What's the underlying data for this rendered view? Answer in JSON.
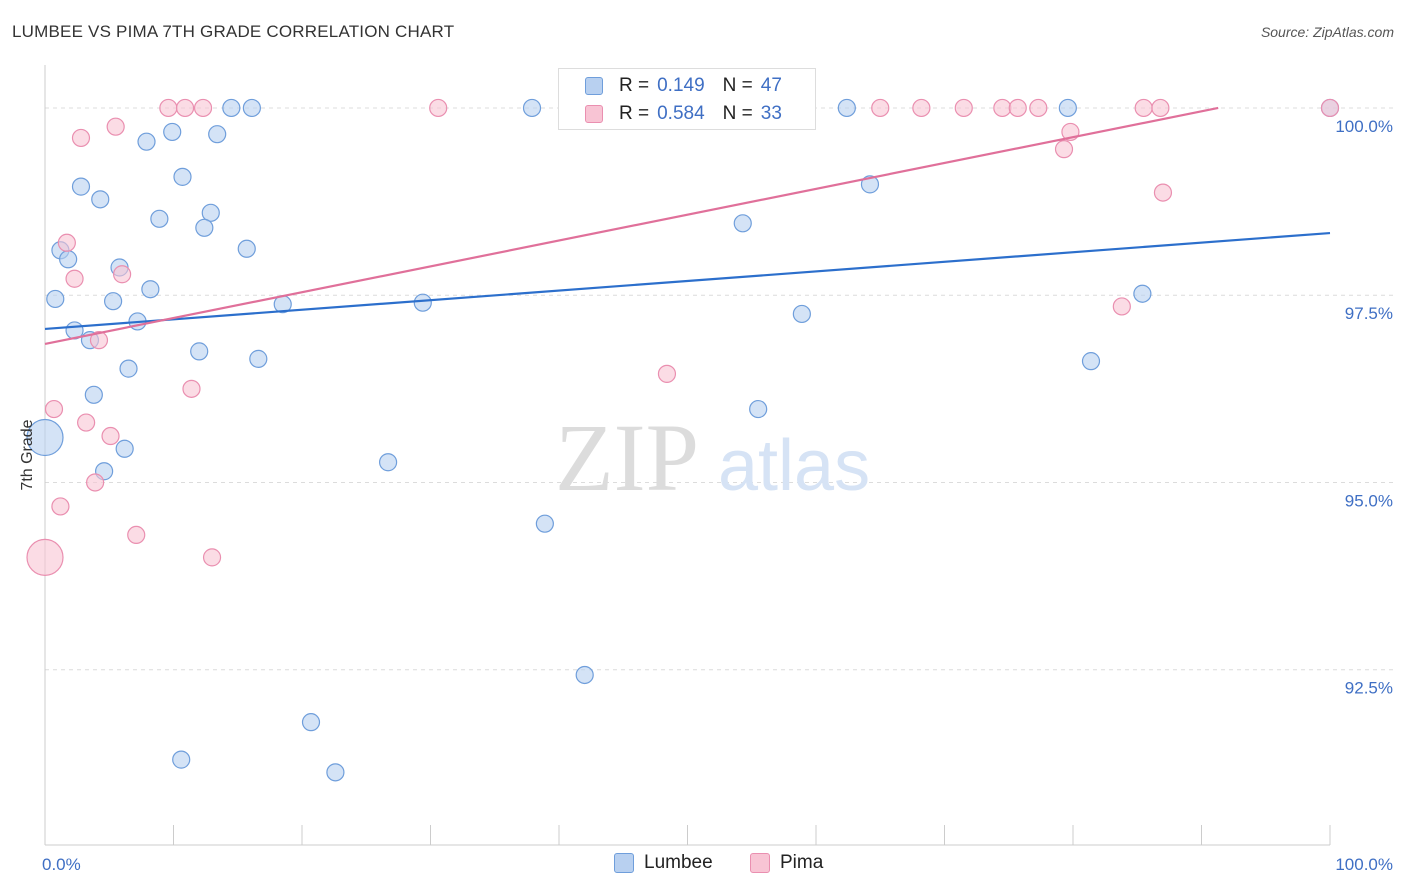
{
  "title": "LUMBEE VS PIMA 7TH GRADE CORRELATION CHART",
  "source": "Source: ZipAtlas.com",
  "watermark": {
    "zip": "ZIP",
    "atlas": "atlas"
  },
  "colors": {
    "lumbee_fill": "#b8d0f0",
    "lumbee_stroke": "#6f9edb",
    "lumbee_line": "#2c6fcc",
    "pima_fill": "#f8c4d4",
    "pima_stroke": "#ea8fb0",
    "pima_line": "#e0709a",
    "tick_text": "#3f6fc4",
    "grid": "#dcdcdc"
  },
  "legend": {
    "rows": [
      {
        "r_label": "R =",
        "r_value": "0.149",
        "n_label": "N =",
        "n_value": "47"
      },
      {
        "r_label": "R =",
        "r_value": "0.584",
        "n_label": "N =",
        "n_value": "33"
      }
    ]
  },
  "bottom_legend": [
    "Lumbee",
    "Pima"
  ],
  "chart_data": {
    "type": "scatter",
    "title": "LUMBEE VS PIMA 7TH GRADE CORRELATION CHART",
    "xlabel": "",
    "ylabel": "7th Grade",
    "xlim": [
      0,
      100
    ],
    "ylim": [
      90.2,
      100.4
    ],
    "x_tick_labels": [
      "0.0%",
      "100.0%"
    ],
    "y_ticks": [
      92.5,
      95.0,
      97.5,
      100.0
    ],
    "y_tick_labels": [
      "92.5%",
      "95.0%",
      "97.5%",
      "100.0%"
    ],
    "grid": true,
    "legend_position": "top-center",
    "series": [
      {
        "name": "Lumbee",
        "trend": {
          "x": [
            0,
            100
          ],
          "y": [
            97.05,
            98.33
          ]
        },
        "points": [
          {
            "x": 0.0,
            "y": 95.6,
            "big": true
          },
          {
            "x": 0.8,
            "y": 97.45
          },
          {
            "x": 1.2,
            "y": 98.1
          },
          {
            "x": 1.8,
            "y": 97.98
          },
          {
            "x": 2.3,
            "y": 97.03
          },
          {
            "x": 2.8,
            "y": 98.95
          },
          {
            "x": 3.5,
            "y": 96.9
          },
          {
            "x": 3.8,
            "y": 96.17
          },
          {
            "x": 4.3,
            "y": 98.78
          },
          {
            "x": 4.6,
            "y": 95.15
          },
          {
            "x": 5.3,
            "y": 97.42
          },
          {
            "x": 5.8,
            "y": 97.87
          },
          {
            "x": 6.2,
            "y": 95.45
          },
          {
            "x": 6.5,
            "y": 96.52
          },
          {
            "x": 7.2,
            "y": 97.15
          },
          {
            "x": 7.9,
            "y": 99.55
          },
          {
            "x": 8.2,
            "y": 97.58
          },
          {
            "x": 8.9,
            "y": 98.52
          },
          {
            "x": 9.9,
            "y": 99.68
          },
          {
            "x": 10.6,
            "y": 91.3
          },
          {
            "x": 10.7,
            "y": 99.08
          },
          {
            "x": 12.0,
            "y": 96.75
          },
          {
            "x": 12.9,
            "y": 98.6
          },
          {
            "x": 13.4,
            "y": 99.65
          },
          {
            "x": 14.5,
            "y": 100.0
          },
          {
            "x": 15.7,
            "y": 98.12
          },
          {
            "x": 16.1,
            "y": 100.0
          },
          {
            "x": 16.6,
            "y": 96.65
          },
          {
            "x": 18.5,
            "y": 97.38
          },
          {
            "x": 20.7,
            "y": 91.8
          },
          {
            "x": 22.6,
            "y": 91.13
          },
          {
            "x": 26.7,
            "y": 95.27
          },
          {
            "x": 29.4,
            "y": 97.4
          },
          {
            "x": 12.4,
            "y": 98.4
          },
          {
            "x": 37.9,
            "y": 100.0
          },
          {
            "x": 38.9,
            "y": 94.45
          },
          {
            "x": 42.0,
            "y": 92.43
          },
          {
            "x": 48.2,
            "y": 100.0
          },
          {
            "x": 54.3,
            "y": 98.46
          },
          {
            "x": 55.5,
            "y": 95.98
          },
          {
            "x": 58.9,
            "y": 97.25
          },
          {
            "x": 62.4,
            "y": 100.0
          },
          {
            "x": 64.2,
            "y": 98.98
          },
          {
            "x": 79.6,
            "y": 100.0
          },
          {
            "x": 81.4,
            "y": 96.62
          },
          {
            "x": 85.4,
            "y": 97.52
          },
          {
            "x": 100.0,
            "y": 100.0
          }
        ]
      },
      {
        "name": "Pima",
        "trend": {
          "x": [
            0,
            91.3
          ],
          "y": [
            96.85,
            100.0
          ]
        },
        "points": [
          {
            "x": 0.0,
            "y": 94.0,
            "big": true
          },
          {
            "x": 0.7,
            "y": 95.98
          },
          {
            "x": 1.2,
            "y": 94.68
          },
          {
            "x": 1.7,
            "y": 98.2
          },
          {
            "x": 2.3,
            "y": 97.72
          },
          {
            "x": 2.8,
            "y": 99.6
          },
          {
            "x": 3.2,
            "y": 95.8
          },
          {
            "x": 3.9,
            "y": 95.0
          },
          {
            "x": 4.2,
            "y": 96.9
          },
          {
            "x": 5.1,
            "y": 95.62
          },
          {
            "x": 5.5,
            "y": 99.75
          },
          {
            "x": 6.0,
            "y": 97.78
          },
          {
            "x": 7.1,
            "y": 94.3
          },
          {
            "x": 9.6,
            "y": 100.0
          },
          {
            "x": 10.9,
            "y": 100.0
          },
          {
            "x": 11.4,
            "y": 96.25
          },
          {
            "x": 12.3,
            "y": 100.0
          },
          {
            "x": 13.0,
            "y": 94.0
          },
          {
            "x": 30.6,
            "y": 100.0
          },
          {
            "x": 48.4,
            "y": 96.45
          },
          {
            "x": 65.0,
            "y": 100.0
          },
          {
            "x": 68.2,
            "y": 100.0
          },
          {
            "x": 71.5,
            "y": 100.0
          },
          {
            "x": 74.5,
            "y": 100.0
          },
          {
            "x": 75.7,
            "y": 100.0
          },
          {
            "x": 77.3,
            "y": 100.0
          },
          {
            "x": 79.3,
            "y": 99.45
          },
          {
            "x": 79.8,
            "y": 99.68
          },
          {
            "x": 83.8,
            "y": 97.35
          },
          {
            "x": 85.5,
            "y": 100.0
          },
          {
            "x": 86.8,
            "y": 100.0
          },
          {
            "x": 87.0,
            "y": 98.87
          },
          {
            "x": 100.0,
            "y": 100.0
          }
        ]
      }
    ]
  }
}
